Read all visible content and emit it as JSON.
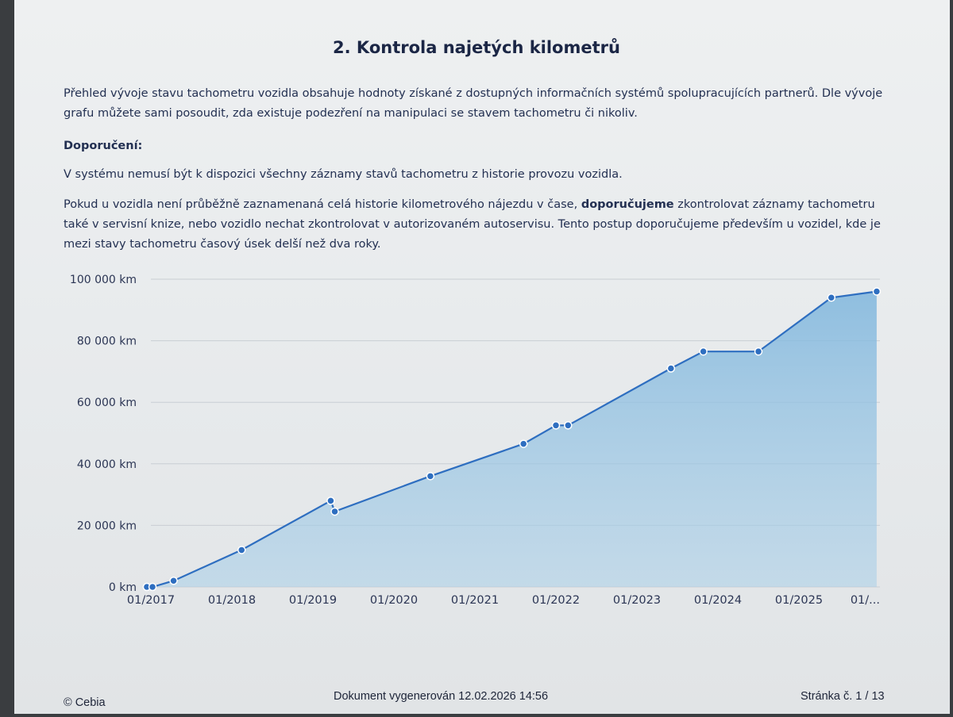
{
  "header": {
    "title": "2. Kontrola najetých kilometrů"
  },
  "content": {
    "intro": "Přehled vývoje stavu tachometru vozidla obsahuje hodnoty získané z dostupných informačních systémů spolupracujících partnerů. Dle vývoje grafu můžete sami posoudit, zda existuje podezření na manipulaci se stavem tachometru či nikoliv.",
    "recommendation_heading": "Doporučení:",
    "recommendation_1": "V systému nemusí být k dispozici všechny záznamy stavů tachometru z historie provozu vozidla.",
    "recommendation_2_before": "Pokud u vozidla není průběžně zaznamenaná celá historie kilometrového nájezdu v čase, ",
    "recommendation_2_bold": "doporučujeme",
    "recommendation_2_after": " zkontrolovat záznamy tachometru také v servisní knize, nebo vozidlo nechat zkontrolovat v autorizovaném autoservisu. Tento postup doporučujeme především u vozidel, kde je mezi stavy tachometru časový úsek delší než dva roky."
  },
  "chart_data": {
    "type": "area",
    "y_tick_labels": [
      "0 km",
      "20 000 km",
      "40 000 km",
      "60 000 km",
      "80 000 km",
      "100 000 km"
    ],
    "y_ticks": [
      0,
      20000,
      40000,
      60000,
      80000,
      100000
    ],
    "ylim": [
      0,
      100000
    ],
    "x_tick_labels": [
      "01/2017",
      "01/2018",
      "01/2019",
      "01/2020",
      "01/2021",
      "01/2022",
      "01/2023",
      "01/2024",
      "01/2025",
      "01/..."
    ],
    "x_ticks": [
      2017,
      2018,
      2019,
      2020,
      2021,
      2022,
      2023,
      2024,
      2025,
      2026
    ],
    "xlim": [
      2017,
      2026
    ],
    "grid": "horizontal",
    "colors": {
      "line": "#2e6ec0",
      "fill": "#6aa8d6",
      "point": "#2e6ec0"
    },
    "x": [
      2016.95,
      2017.02,
      2017.28,
      2018.12,
      2019.22,
      2019.27,
      2020.45,
      2021.6,
      2022.0,
      2022.15,
      2023.42,
      2023.82,
      2024.5,
      2025.4,
      2025.96
    ],
    "y": [
      0,
      0,
      2000,
      12000,
      28000,
      24500,
      36000,
      46500,
      52500,
      52500,
      71000,
      76500,
      76500,
      94000,
      96000
    ]
  },
  "footer": {
    "copyright": "© Cebia",
    "generated": "Dokument vygenerován 12.02.2026 14:56",
    "page": "Stránka č. 1 / 13"
  }
}
